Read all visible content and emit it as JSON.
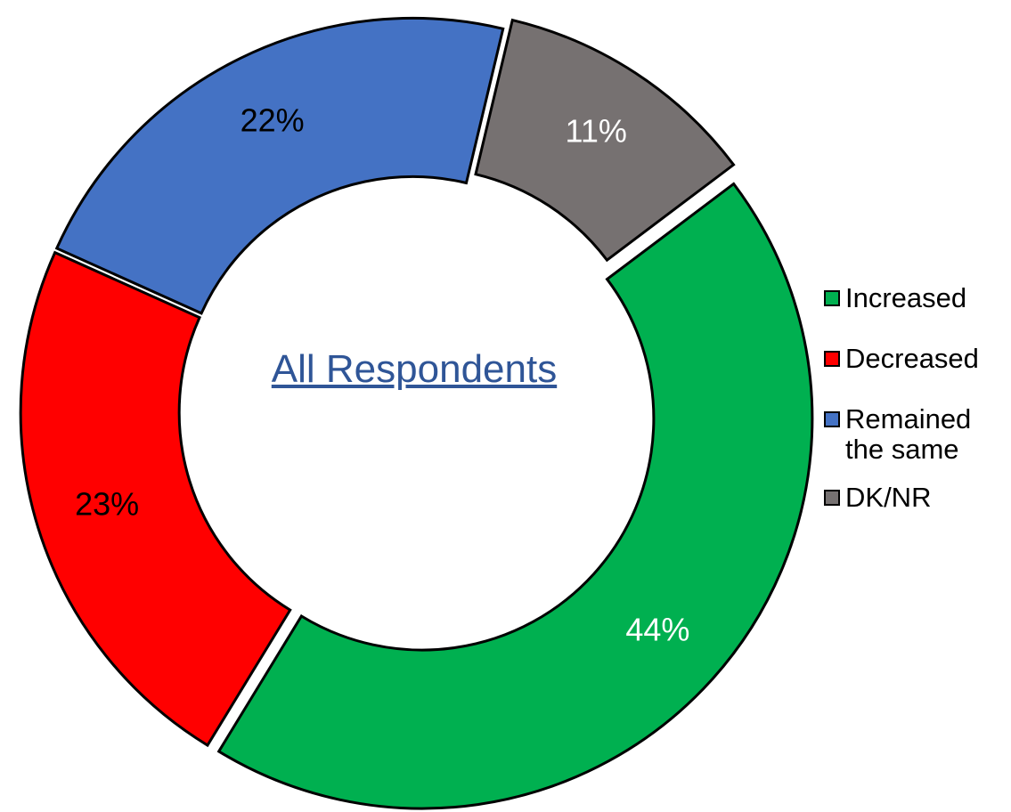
{
  "chart_data": {
    "type": "donut",
    "title": "All Respondents",
    "categories": [
      "Increased",
      "Decreased",
      "Remained the same",
      "DK/NR"
    ],
    "values": [
      44,
      23,
      22,
      11
    ],
    "value_labels": [
      "44%",
      "23%",
      "22%",
      "11%"
    ],
    "colors": [
      "#00b050",
      "#ff0000",
      "#4472c4",
      "#767171"
    ],
    "label_colors": [
      "#ffffff",
      "#000000",
      "#000000",
      "#ffffff"
    ],
    "legend": "right"
  }
}
